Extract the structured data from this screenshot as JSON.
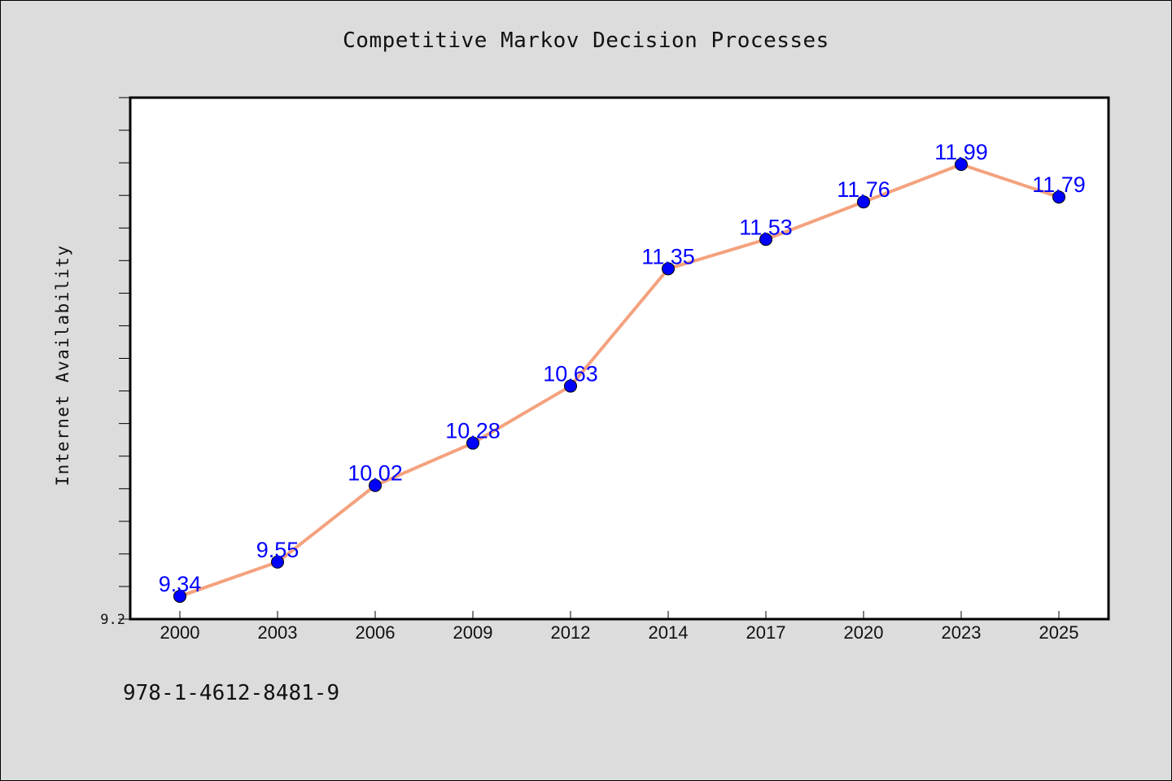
{
  "colors": {
    "background": "#dcdcdc",
    "plot_background": "#ffffff",
    "line": "#f4a27e",
    "marker": "#0000ff",
    "data_label": "#0000ff"
  },
  "footer": {
    "code": "978-1-4612-8481-9"
  },
  "chart_data": {
    "type": "line",
    "title": "Competitive Markov Decision Processes",
    "xlabel": "",
    "ylabel": "Internet Availability",
    "categories": [
      "2000",
      "2003",
      "2006",
      "2009",
      "2012",
      "2014",
      "2017",
      "2020",
      "2023",
      "2025"
    ],
    "series": [
      {
        "values": [
          9.34,
          9.55,
          10.02,
          10.28,
          10.63,
          11.35,
          11.53,
          11.76,
          11.99,
          11.79
        ]
      }
    ],
    "data_labels": [
      "9.34",
      "9.55",
      "10.02",
      "10.28",
      "10.63",
      "11.35",
      "11.53",
      "11.76",
      "11.99",
      "11.79"
    ],
    "ylim": [
      9.2,
      12.4
    ],
    "y_minor_tick_step": 0.2,
    "y_tick_labels": [
      "9.2"
    ],
    "grid": false,
    "legend": "none"
  }
}
